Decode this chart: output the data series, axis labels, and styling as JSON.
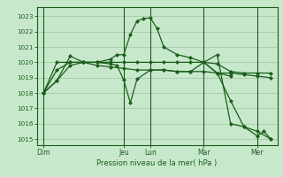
{
  "background_color": "#c8e8cc",
  "grid_color": "#a8c8a8",
  "line_color": "#1a5e1a",
  "marker_color": "#1a5e1a",
  "ylabel_values": [
    1015,
    1016,
    1017,
    1018,
    1019,
    1020,
    1021,
    1022,
    1023
  ],
  "ylim": [
    1014.6,
    1023.6
  ],
  "xlim": [
    0,
    36
  ],
  "xlabel": "Pression niveau de la mer( hPa )",
  "xtick_labels": [
    "Dim",
    "Jeu",
    "Lun",
    "Mar",
    "Mer"
  ],
  "xtick_positions": [
    1,
    13,
    17,
    25,
    33
  ],
  "vline_positions": [
    1,
    13,
    17,
    25,
    33
  ],
  "series": [
    {
      "x": [
        1,
        3,
        5,
        7,
        9,
        11,
        13,
        15,
        17,
        19,
        21,
        23,
        25,
        27,
        29
      ],
      "y": [
        1018.0,
        1020.0,
        1020.0,
        1020.0,
        1020.0,
        1020.0,
        1020.0,
        1020.0,
        1020.0,
        1020.0,
        1020.0,
        1020.0,
        1020.0,
        1019.3,
        1019.1
      ]
    },
    {
      "x": [
        1,
        3,
        5,
        7,
        9,
        11,
        13,
        15,
        17,
        19,
        21,
        23,
        25,
        27,
        29,
        31,
        33,
        35
      ],
      "y": [
        1018.0,
        1019.5,
        1020.0,
        1020.0,
        1019.8,
        1019.7,
        1019.6,
        1019.5,
        1019.5,
        1019.5,
        1019.4,
        1019.4,
        1019.4,
        1019.3,
        1019.3,
        1019.2,
        1019.1,
        1019.0
      ]
    },
    {
      "x": [
        1,
        3,
        5,
        7,
        9,
        11,
        12,
        13,
        14,
        15,
        16,
        17,
        18,
        19,
        21,
        23,
        25,
        27,
        29,
        31,
        33,
        35
      ],
      "y": [
        1018.0,
        1018.8,
        1019.8,
        1020.0,
        1020.0,
        1020.2,
        1020.5,
        1020.5,
        1021.8,
        1022.7,
        1022.85,
        1022.9,
        1022.2,
        1021.0,
        1020.5,
        1020.3,
        1020.0,
        1019.9,
        1019.4,
        1019.3,
        1019.3,
        1019.3
      ]
    },
    {
      "x": [
        1,
        3,
        5,
        7,
        9,
        11,
        12,
        13,
        14,
        15,
        17,
        19,
        21,
        23,
        25,
        27,
        29,
        31,
        33,
        35
      ],
      "y": [
        1018.0,
        1018.8,
        1020.4,
        1020.0,
        1020.0,
        1019.9,
        1019.8,
        1018.85,
        1017.35,
        1018.9,
        1019.5,
        1019.5,
        1019.4,
        1019.4,
        1020.0,
        1019.3,
        1017.5,
        1015.8,
        1015.5,
        1015.0
      ]
    },
    {
      "x": [
        25,
        27,
        29,
        31,
        33,
        34,
        35
      ],
      "y": [
        1020.0,
        1020.5,
        1016.0,
        1015.8,
        1015.2,
        1015.5,
        1015.0
      ]
    }
  ]
}
